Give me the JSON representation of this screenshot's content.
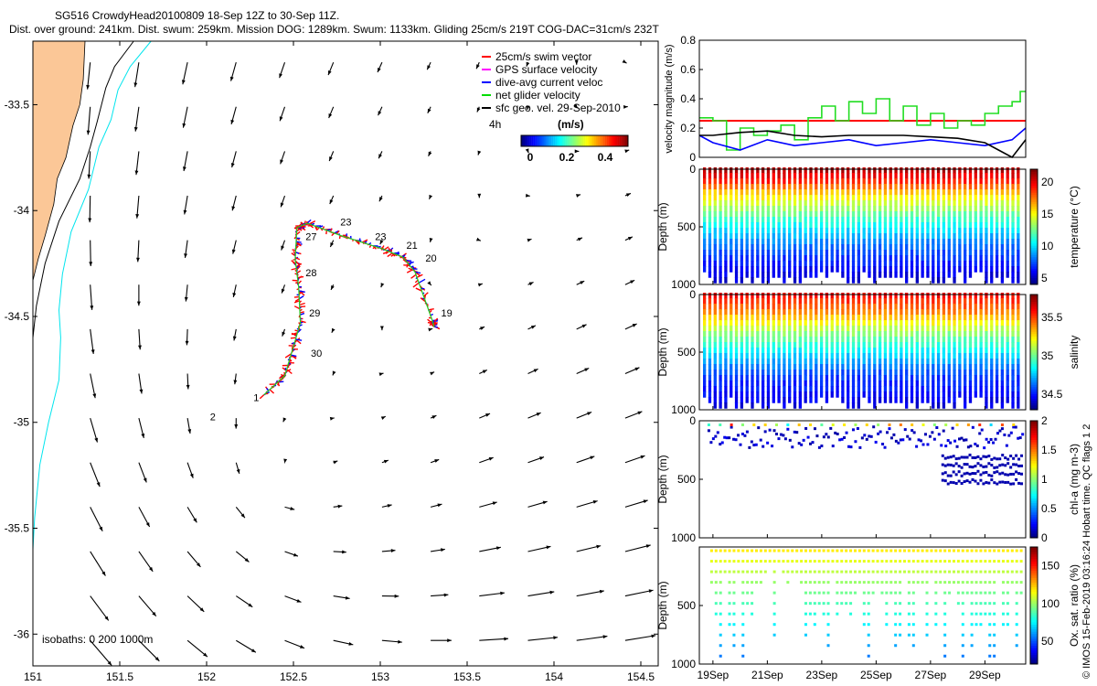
{
  "header": {
    "line1": "SG516 CrowdyHead20100809 18-Sep 12Z to 30-Sep 11Z.",
    "line2": "Dist. over ground: 241km. Dist. swum: 259km. Mission DOG: 1289km. Swum: 1133km. Gliding 25cm/s 219T COG-DAC=31cm/s 232T"
  },
  "credit": "© IMOS 15-Feb-2019 03:16:24 Hobart time. QC flags 1  2",
  "chart_data": [
    {
      "type": "map",
      "xlim": [
        151,
        154.6
      ],
      "ylim": [
        -36.15,
        -33.2
      ],
      "xticks": [
        "151",
        "151.5",
        "152",
        "152.5",
        "153",
        "153.5",
        "154",
        "154.5"
      ],
      "yticks": [
        "-33.5",
        "-34",
        "-34.5",
        "-35",
        "-35.5",
        "-36"
      ],
      "isobath_label": "isobaths: 0   200  1000m",
      "legend": {
        "position": "top-right",
        "entries": [
          {
            "label": "25cm/s swim vector",
            "color": "#ff0000"
          },
          {
            "label": "GPS surface velocity",
            "color": "#ff00ff"
          },
          {
            "label": "dive-avg current veloc",
            "color": "#0000ff"
          },
          {
            "label": "net glider velocity",
            "color": "#00dd00"
          },
          {
            "label": "sfc geo. vel. 29-Sep-2010",
            "color": "#000000"
          }
        ],
        "time_note": "4h",
        "colorbar_title": "(m/s)",
        "colorbar_ticks": [
          "0",
          "0.2",
          "0.4"
        ]
      },
      "track": {
        "points": [
          {
            "lon": 152.33,
            "lat": -34.87
          },
          {
            "lon": 152.45,
            "lat": -34.78
          },
          {
            "lon": 152.49,
            "lat": -34.67
          },
          {
            "lon": 152.54,
            "lat": -34.53
          },
          {
            "lon": 152.53,
            "lat": -34.36
          },
          {
            "lon": 152.51,
            "lat": -34.23
          },
          {
            "lon": 152.52,
            "lat": -34.08
          },
          {
            "lon": 152.58,
            "lat": -34.06
          },
          {
            "lon": 152.78,
            "lat": -34.12
          },
          {
            "lon": 153.01,
            "lat": -34.18
          },
          {
            "lon": 153.13,
            "lat": -34.22
          },
          {
            "lon": 153.2,
            "lat": -34.29
          },
          {
            "lon": 153.3,
            "lat": -34.52
          },
          {
            "lon": 153.31,
            "lat": -34.55
          }
        ],
        "day_labels": [
          {
            "label": "1",
            "lon": 152.27,
            "lat": -34.9
          },
          {
            "label": "2",
            "lon": 152.02,
            "lat": -34.99
          },
          {
            "label": "19",
            "lon": 153.35,
            "lat": -34.5
          },
          {
            "label": "20",
            "lon": 153.26,
            "lat": -34.24
          },
          {
            "label": "21",
            "lon": 153.15,
            "lat": -34.18
          },
          {
            "label": "23",
            "lon": 152.97,
            "lat": -34.14
          },
          {
            "label": "23",
            "lon": 152.77,
            "lat": -34.07
          },
          {
            "label": "27",
            "lon": 152.57,
            "lat": -34.14
          },
          {
            "label": "28",
            "lon": 152.57,
            "lat": -34.31
          },
          {
            "label": "29",
            "lon": 152.59,
            "lat": -34.5
          },
          {
            "label": "30",
            "lon": 152.6,
            "lat": -34.69
          }
        ]
      },
      "coastline": [
        {
          "lon": 151,
          "lat": -34.33
        },
        {
          "lon": 151.03,
          "lat": -34.23
        },
        {
          "lon": 151.07,
          "lat": -34.12
        },
        {
          "lon": 151.12,
          "lat": -33.97
        },
        {
          "lon": 151.14,
          "lat": -33.85
        },
        {
          "lon": 151.19,
          "lat": -33.75
        },
        {
          "lon": 151.23,
          "lat": -33.6
        },
        {
          "lon": 151.27,
          "lat": -33.5
        },
        {
          "lon": 151.29,
          "lat": -33.38
        },
        {
          "lon": 151.3,
          "lat": -33.2
        }
      ],
      "isobath_1000": [
        {
          "lon": 151.58,
          "lat": -33.2
        },
        {
          "lon": 151.47,
          "lat": -33.32
        },
        {
          "lon": 151.42,
          "lat": -33.42
        },
        {
          "lon": 151.37,
          "lat": -33.58
        },
        {
          "lon": 151.33,
          "lat": -33.7
        },
        {
          "lon": 151.27,
          "lat": -33.85
        },
        {
          "lon": 151.15,
          "lat": -34.05
        },
        {
          "lon": 151.07,
          "lat": -34.25
        },
        {
          "lon": 151.02,
          "lat": -34.45
        },
        {
          "lon": 151.0,
          "lat": -34.6
        }
      ],
      "isobath_200": [
        {
          "lon": 151.68,
          "lat": -33.2
        },
        {
          "lon": 151.56,
          "lat": -33.32
        },
        {
          "lon": 151.49,
          "lat": -33.43
        },
        {
          "lon": 151.45,
          "lat": -33.57
        },
        {
          "lon": 151.38,
          "lat": -33.7
        },
        {
          "lon": 151.32,
          "lat": -33.9
        },
        {
          "lon": 151.22,
          "lat": -34.1
        },
        {
          "lon": 151.17,
          "lat": -34.3
        },
        {
          "lon": 151.15,
          "lat": -34.47
        },
        {
          "lon": 151.16,
          "lat": -34.6
        },
        {
          "lon": 151.15,
          "lat": -34.8
        },
        {
          "lon": 151.09,
          "lat": -35.0
        },
        {
          "lon": 151.04,
          "lat": -35.2
        },
        {
          "lon": 151.01,
          "lat": -35.45
        },
        {
          "lon": 151.0,
          "lat": -35.6
        }
      ]
    },
    {
      "type": "line",
      "ylabel": "velocity magnitude (m/s)",
      "ylim": [
        0,
        0.8
      ],
      "yticks": [
        "0",
        "0.2",
        "0.4",
        "0.6",
        "0.8"
      ],
      "xlim": [
        18.5,
        30.5
      ],
      "series": [
        {
          "name": "25cm/s swim vector",
          "color": "#ff0000",
          "x": [
            18.5,
            30.5
          ],
          "y": [
            0.25,
            0.25
          ]
        },
        {
          "name": "net glider velocity",
          "color": "#22dd22",
          "x": [
            18.5,
            19.0,
            19.5,
            20.0,
            20.5,
            21.0,
            21.5,
            22.0,
            22.5,
            23.0,
            23.5,
            24.0,
            24.5,
            25.0,
            25.5,
            26.0,
            26.5,
            27.0,
            27.5,
            28.0,
            28.5,
            29.0,
            29.5,
            30.0,
            30.3,
            30.5
          ],
          "y": [
            0.27,
            0.25,
            0.05,
            0.2,
            0.15,
            0.18,
            0.22,
            0.12,
            0.27,
            0.35,
            0.25,
            0.38,
            0.3,
            0.4,
            0.25,
            0.35,
            0.22,
            0.3,
            0.2,
            0.25,
            0.22,
            0.3,
            0.35,
            0.38,
            0.45,
            0.5
          ]
        },
        {
          "name": "dive-avg current veloc",
          "color": "#0000ff",
          "x": [
            18.5,
            19.0,
            20.0,
            21.0,
            22.0,
            23.0,
            24.0,
            25.0,
            26.0,
            27.0,
            28.0,
            29.0,
            30.0,
            30.5
          ],
          "y": [
            0.15,
            0.1,
            0.05,
            0.12,
            0.08,
            0.1,
            0.12,
            0.08,
            0.1,
            0.12,
            0.1,
            0.08,
            0.12,
            0.2
          ]
        },
        {
          "name": "sfc geo. vel.",
          "color": "#000000",
          "x": [
            18.5,
            19.0,
            20.0,
            21.0,
            22.0,
            23.0,
            24.0,
            25.0,
            26.0,
            27.0,
            28.0,
            29.0,
            29.5,
            30.0,
            30.5
          ],
          "y": [
            0.15,
            0.15,
            0.17,
            0.18,
            0.15,
            0.14,
            0.15,
            0.15,
            0.15,
            0.14,
            0.13,
            0.1,
            0.05,
            0.0,
            0.12
          ]
        }
      ]
    },
    {
      "type": "heatmap",
      "ylabel": "Depth (m)",
      "cbar_label": "temperature (°C)",
      "ylim": [
        1000,
        0
      ],
      "yticks": [
        "0",
        "500",
        "1000"
      ],
      "cbar_ticks": [
        "5",
        "10",
        "15",
        "20"
      ],
      "clim": [
        4,
        22
      ],
      "bands": [
        {
          "depth": 0,
          "value": 21
        },
        {
          "depth": 100,
          "value": 19
        },
        {
          "depth": 200,
          "value": 16
        },
        {
          "depth": 300,
          "value": 14
        },
        {
          "depth": 450,
          "value": 11
        },
        {
          "depth": 650,
          "value": 8
        },
        {
          "depth": 850,
          "value": 6
        },
        {
          "depth": 1000,
          "value": 5
        }
      ]
    },
    {
      "type": "heatmap",
      "ylabel": "Depth (m)",
      "cbar_label": "salinity",
      "ylim": [
        1000,
        0
      ],
      "yticks": [
        "0",
        "500",
        "1000"
      ],
      "cbar_ticks": [
        "34.5",
        "35",
        "35.5"
      ],
      "clim": [
        34.3,
        35.8
      ],
      "bands": [
        {
          "depth": 0,
          "value": 35.6
        },
        {
          "depth": 150,
          "value": 35.4
        },
        {
          "depth": 300,
          "value": 35.1
        },
        {
          "depth": 500,
          "value": 34.8
        },
        {
          "depth": 700,
          "value": 34.55
        },
        {
          "depth": 900,
          "value": 34.45
        },
        {
          "depth": 1000,
          "value": 34.4
        }
      ]
    },
    {
      "type": "scatter",
      "ylabel": "Depth (m)",
      "cbar_label": "chl-a (mg m-3)",
      "ylim": [
        1000,
        0
      ],
      "yticks": [
        "0",
        "500",
        "1000"
      ],
      "cbar_ticks": [
        "0",
        "0.5",
        "1",
        "1.5",
        "2"
      ],
      "clim": [
        0,
        2
      ]
    },
    {
      "type": "scatter",
      "ylabel": "Depth (m)",
      "cbar_label": "Ox. sat. ratio (%)",
      "ylim": [
        1000,
        0
      ],
      "yticks": [
        "500",
        "1000"
      ],
      "cbar_ticks": [
        "50",
        "100",
        "150"
      ],
      "clim": [
        20,
        175
      ],
      "xticks": [
        "19Sep",
        "21Sep",
        "23Sep",
        "25Sep",
        "27Sep",
        "29Sep"
      ],
      "xtick_days": [
        19,
        21,
        23,
        25,
        27,
        29
      ],
      "xlim": [
        18.5,
        30.5
      ]
    }
  ]
}
